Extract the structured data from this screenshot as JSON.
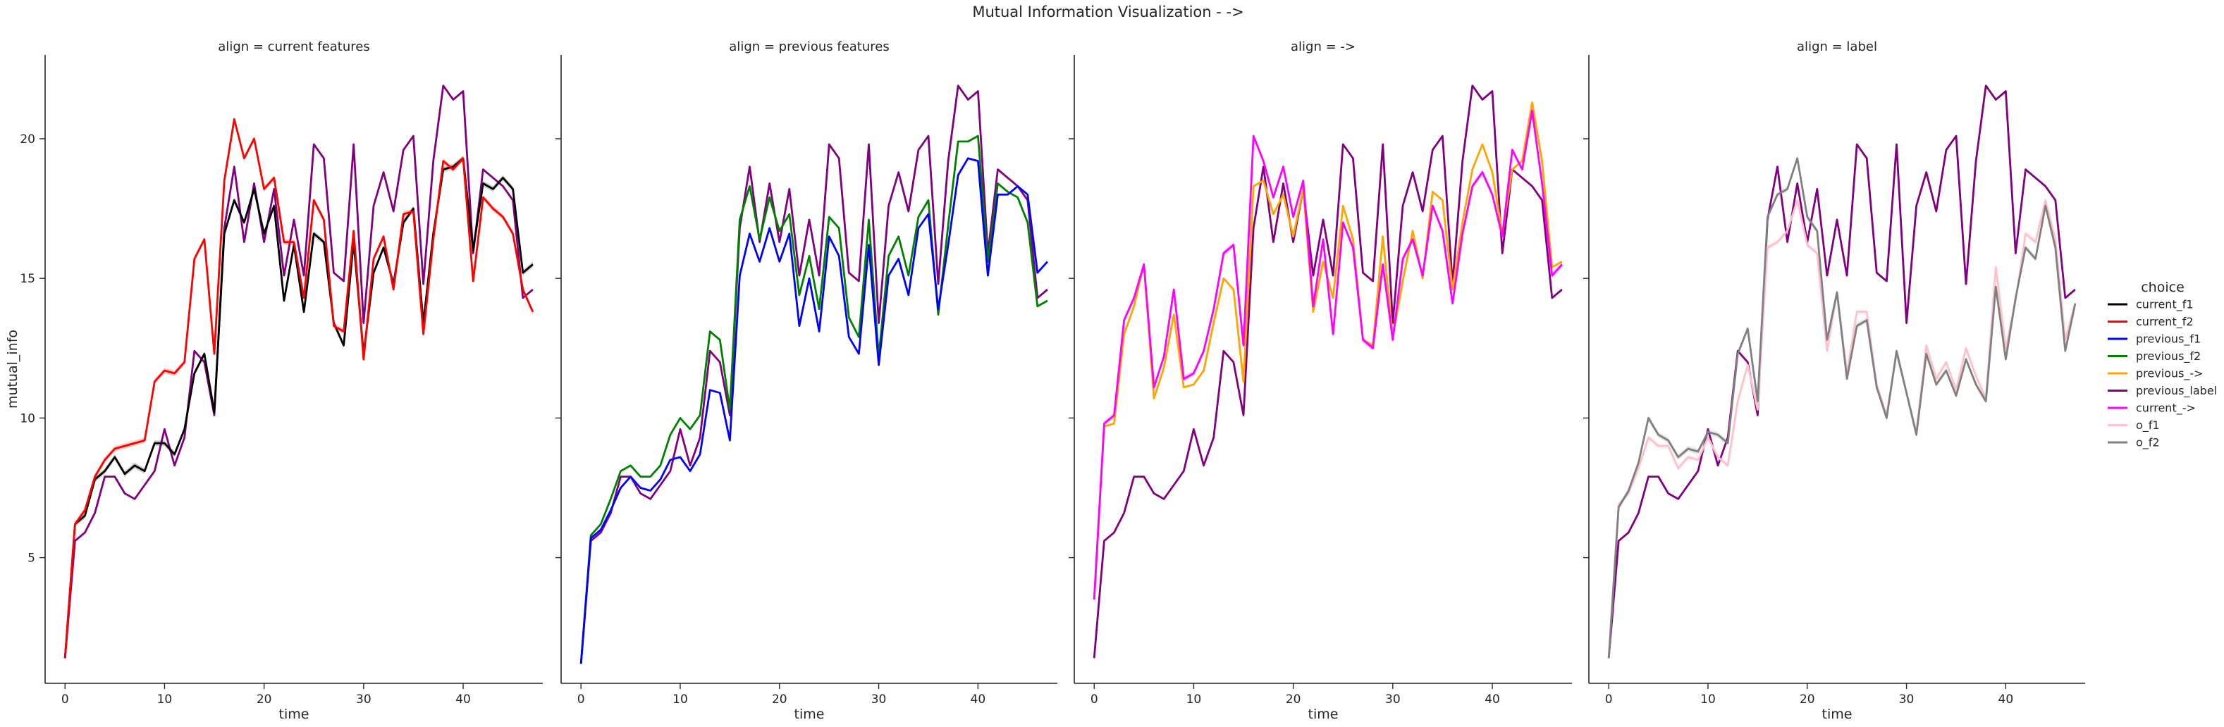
{
  "figure": {
    "title": "Mutual Information Visualization - ->"
  },
  "legend": {
    "title": "choice",
    "entries": [
      {
        "name": "current_f1",
        "color": "#000000"
      },
      {
        "name": "current_f2",
        "color": "#ff0000"
      },
      {
        "name": "previous_f1",
        "color": "#0000ff"
      },
      {
        "name": "previous_f2",
        "color": "#008000"
      },
      {
        "name": "previous_->",
        "color": "#ffa500"
      },
      {
        "name": "previous_label",
        "color": "#800080"
      },
      {
        "name": "current_->",
        "color": "#ff00ff"
      },
      {
        "name": "o_f1",
        "color": "#ffc0cb"
      },
      {
        "name": "o_f2",
        "color": "#808080"
      }
    ]
  },
  "chart_data": [
    {
      "type": "line",
      "title": "align = current features",
      "xlabel": "time",
      "ylabel": "mutual_info",
      "xlim": [
        -2,
        48
      ],
      "ylim": [
        0.5,
        23
      ],
      "xticks": [
        0,
        10,
        20,
        30,
        40
      ],
      "yticks": [
        5,
        10,
        15,
        20
      ],
      "series": [
        {
          "name": "previous_label",
          "color": "#800080",
          "values": [
            1.4,
            5.6,
            5.9,
            6.6,
            7.9,
            7.9,
            7.3,
            7.1,
            7.6,
            8.1,
            9.6,
            8.3,
            9.3,
            12.4,
            12.0,
            10.1,
            16.8,
            19.0,
            16.3,
            18.4,
            16.3,
            18.2,
            15.1,
            17.1,
            15.1,
            19.8,
            19.3,
            15.2,
            14.9,
            19.8,
            13.4,
            17.6,
            18.8,
            17.4,
            19.6,
            20.1,
            14.8,
            19.2,
            21.9,
            21.4,
            21.7,
            15.9,
            18.9,
            18.6,
            18.3,
            17.8,
            14.3,
            14.6
          ]
        },
        {
          "name": "current_f1",
          "color": "#000000",
          "band": true,
          "values": [
            1.4,
            6.2,
            6.5,
            7.8,
            8.1,
            8.6,
            8.0,
            8.3,
            8.1,
            9.1,
            9.1,
            8.7,
            9.6,
            11.6,
            12.3,
            10.2,
            16.6,
            17.8,
            17.0,
            18.2,
            16.6,
            17.6,
            14.2,
            16.2,
            13.8,
            16.6,
            16.3,
            13.4,
            12.6,
            16.3,
            12.3,
            15.2,
            16.1,
            14.8,
            17.0,
            17.5,
            13.4,
            16.6,
            18.9,
            19.0,
            19.3,
            16.0,
            18.4,
            18.2,
            18.6,
            18.2,
            15.2,
            15.5
          ]
        },
        {
          "name": "current_f2",
          "color": "#ff0000",
          "band": true,
          "values": [
            1.4,
            6.2,
            6.7,
            7.9,
            8.5,
            8.9,
            9.0,
            9.1,
            9.2,
            11.3,
            11.7,
            11.6,
            12.0,
            15.7,
            16.4,
            12.3,
            18.5,
            20.7,
            19.3,
            20.0,
            18.2,
            18.6,
            16.3,
            16.3,
            14.3,
            17.8,
            17.1,
            13.3,
            13.1,
            16.7,
            12.1,
            15.7,
            16.5,
            14.6,
            17.3,
            17.4,
            13.0,
            16.4,
            19.2,
            18.9,
            19.3,
            14.9,
            17.9,
            17.5,
            17.2,
            16.6,
            14.6,
            13.8
          ]
        }
      ]
    },
    {
      "type": "line",
      "title": "align = previous features",
      "xlabel": "time",
      "ylabel": "",
      "xlim": [
        -2,
        48
      ],
      "ylim": [
        0.5,
        23
      ],
      "xticks": [
        0,
        10,
        20,
        30,
        40
      ],
      "yticks": [
        5,
        10,
        15,
        20
      ],
      "series": [
        {
          "name": "previous_label",
          "color": "#800080",
          "values": [
            1.2,
            5.6,
            5.9,
            6.6,
            7.9,
            7.9,
            7.3,
            7.1,
            7.6,
            8.1,
            9.6,
            8.3,
            9.3,
            12.4,
            12.0,
            10.1,
            16.8,
            19.0,
            16.3,
            18.4,
            16.3,
            18.2,
            15.1,
            17.1,
            15.1,
            19.8,
            19.3,
            15.2,
            14.9,
            19.8,
            13.4,
            17.6,
            18.8,
            17.4,
            19.6,
            20.1,
            14.8,
            19.2,
            21.9,
            21.4,
            21.7,
            15.9,
            18.9,
            18.6,
            18.3,
            17.8,
            14.3,
            14.6
          ]
        },
        {
          "name": "previous_f2",
          "color": "#008000",
          "values": [
            1.2,
            5.8,
            6.2,
            7.1,
            8.1,
            8.3,
            7.9,
            7.9,
            8.3,
            9.4,
            10.0,
            9.6,
            10.1,
            13.1,
            12.8,
            10.3,
            17.1,
            18.3,
            16.4,
            17.9,
            16.7,
            17.3,
            14.4,
            15.8,
            13.9,
            17.2,
            16.8,
            13.6,
            12.9,
            17.1,
            12.2,
            15.8,
            16.5,
            15.1,
            17.2,
            17.8,
            13.7,
            16.9,
            19.9,
            19.9,
            20.1,
            15.6,
            18.4,
            18.1,
            17.9,
            17.0,
            14.0,
            14.2
          ]
        },
        {
          "name": "previous_f1",
          "color": "#0000ff",
          "values": [
            1.2,
            5.7,
            6.0,
            6.7,
            7.5,
            7.9,
            7.5,
            7.4,
            7.8,
            8.5,
            8.6,
            8.1,
            8.7,
            11.0,
            10.9,
            9.2,
            15.1,
            16.6,
            15.6,
            16.8,
            15.6,
            16.6,
            13.3,
            15.0,
            13.1,
            16.5,
            15.8,
            12.9,
            12.3,
            16.2,
            11.9,
            15.1,
            15.7,
            14.4,
            16.8,
            17.3,
            13.9,
            16.2,
            18.7,
            19.3,
            19.2,
            15.1,
            18.0,
            18.0,
            18.3,
            18.0,
            15.2,
            15.6
          ]
        }
      ]
    },
    {
      "type": "line",
      "title": "align = ->",
      "xlabel": "time",
      "ylabel": "",
      "xlim": [
        -2,
        48
      ],
      "ylim": [
        0.5,
        23
      ],
      "xticks": [
        0,
        10,
        20,
        30,
        40
      ],
      "yticks": [
        5,
        10,
        15,
        20
      ],
      "series": [
        {
          "name": "previous_label",
          "color": "#800080",
          "values": [
            1.4,
            5.6,
            5.9,
            6.6,
            7.9,
            7.9,
            7.3,
            7.1,
            7.6,
            8.1,
            9.6,
            8.3,
            9.3,
            12.4,
            12.0,
            10.1,
            16.8,
            19.0,
            16.3,
            18.4,
            16.3,
            18.2,
            15.1,
            17.1,
            15.1,
            19.8,
            19.3,
            15.2,
            14.9,
            19.8,
            13.4,
            17.6,
            18.8,
            17.4,
            19.6,
            20.1,
            14.8,
            19.2,
            21.9,
            21.4,
            21.7,
            15.9,
            18.9,
            18.6,
            18.3,
            17.8,
            14.3,
            14.6
          ]
        },
        {
          "name": "previous_->",
          "color": "#ffa500",
          "values": [
            3.5,
            9.7,
            9.8,
            13.0,
            14.0,
            15.5,
            10.7,
            11.8,
            13.7,
            11.1,
            11.2,
            11.7,
            13.4,
            15.0,
            14.6,
            11.3,
            18.3,
            18.5,
            17.3,
            18.0,
            16.5,
            18.2,
            13.8,
            15.6,
            14.3,
            17.6,
            16.4,
            12.8,
            12.6,
            16.5,
            12.9,
            14.9,
            16.7,
            15.0,
            18.1,
            17.8,
            14.6,
            17.0,
            18.9,
            19.8,
            18.8,
            16.6,
            18.9,
            19.2,
            21.3,
            19.2,
            15.4,
            15.6
          ]
        },
        {
          "name": "current_->",
          "color": "#ff00ff",
          "band": true,
          "values": [
            3.5,
            9.8,
            10.1,
            13.5,
            14.3,
            15.5,
            11.1,
            12.2,
            14.6,
            11.4,
            11.6,
            12.4,
            13.9,
            15.9,
            16.2,
            12.6,
            20.1,
            19.2,
            17.9,
            19.0,
            17.2,
            18.5,
            14.0,
            16.4,
            13.0,
            17.0,
            16.1,
            12.8,
            12.5,
            15.5,
            12.8,
            15.7,
            16.4,
            15.1,
            17.6,
            16.7,
            14.1,
            16.6,
            18.3,
            18.8,
            18.0,
            16.5,
            19.6,
            18.9,
            21.0,
            18.4,
            15.1,
            15.5
          ]
        }
      ]
    },
    {
      "type": "line",
      "title": "align = label",
      "xlabel": "time",
      "ylabel": "",
      "xlim": [
        -2,
        48
      ],
      "ylim": [
        0.5,
        23
      ],
      "xticks": [
        0,
        10,
        20,
        30,
        40
      ],
      "yticks": [
        5,
        10,
        15,
        20
      ],
      "series": [
        {
          "name": "previous_label",
          "color": "#800080",
          "values": [
            1.4,
            5.6,
            5.9,
            6.6,
            7.9,
            7.9,
            7.3,
            7.1,
            7.6,
            8.1,
            9.6,
            8.3,
            9.3,
            12.4,
            12.0,
            10.1,
            17.1,
            19.0,
            16.3,
            18.4,
            16.3,
            18.2,
            15.1,
            17.1,
            15.1,
            19.8,
            19.3,
            15.2,
            14.9,
            19.8,
            13.4,
            17.6,
            18.8,
            17.4,
            19.6,
            20.1,
            14.8,
            19.2,
            21.9,
            21.4,
            21.7,
            15.9,
            18.9,
            18.6,
            18.3,
            17.8,
            14.3,
            14.6
          ]
        },
        {
          "name": "o_f1",
          "color": "#ffc0cb",
          "band": true,
          "values": [
            1.4,
            6.9,
            7.3,
            8.2,
            9.3,
            9.0,
            9.0,
            8.2,
            8.6,
            8.5,
            9.3,
            8.6,
            8.3,
            10.6,
            11.9,
            10.3,
            16.1,
            16.3,
            16.7,
            17.8,
            16.2,
            15.9,
            12.4,
            14.5,
            11.6,
            13.8,
            13.8,
            11.2,
            10.1,
            12.3,
            10.9,
            9.5,
            12.6,
            11.4,
            12.0,
            11.0,
            12.5,
            11.5,
            10.7,
            15.4,
            12.5,
            14.2,
            16.6,
            16.3,
            17.8,
            16.4,
            12.8,
            14.1
          ]
        },
        {
          "name": "o_f2",
          "color": "#808080",
          "band": true,
          "values": [
            1.4,
            6.8,
            7.4,
            8.4,
            10.0,
            9.4,
            9.2,
            8.6,
            8.9,
            8.8,
            9.5,
            9.4,
            9.1,
            12.3,
            13.2,
            10.6,
            17.2,
            18.0,
            18.2,
            19.3,
            17.2,
            16.7,
            12.8,
            14.5,
            11.4,
            13.3,
            13.5,
            11.1,
            10.0,
            12.4,
            10.9,
            9.4,
            12.3,
            11.2,
            11.7,
            10.8,
            12.1,
            11.2,
            10.6,
            14.7,
            12.1,
            14.3,
            16.1,
            15.7,
            17.6,
            16.1,
            12.4,
            14.1
          ]
        }
      ]
    }
  ]
}
